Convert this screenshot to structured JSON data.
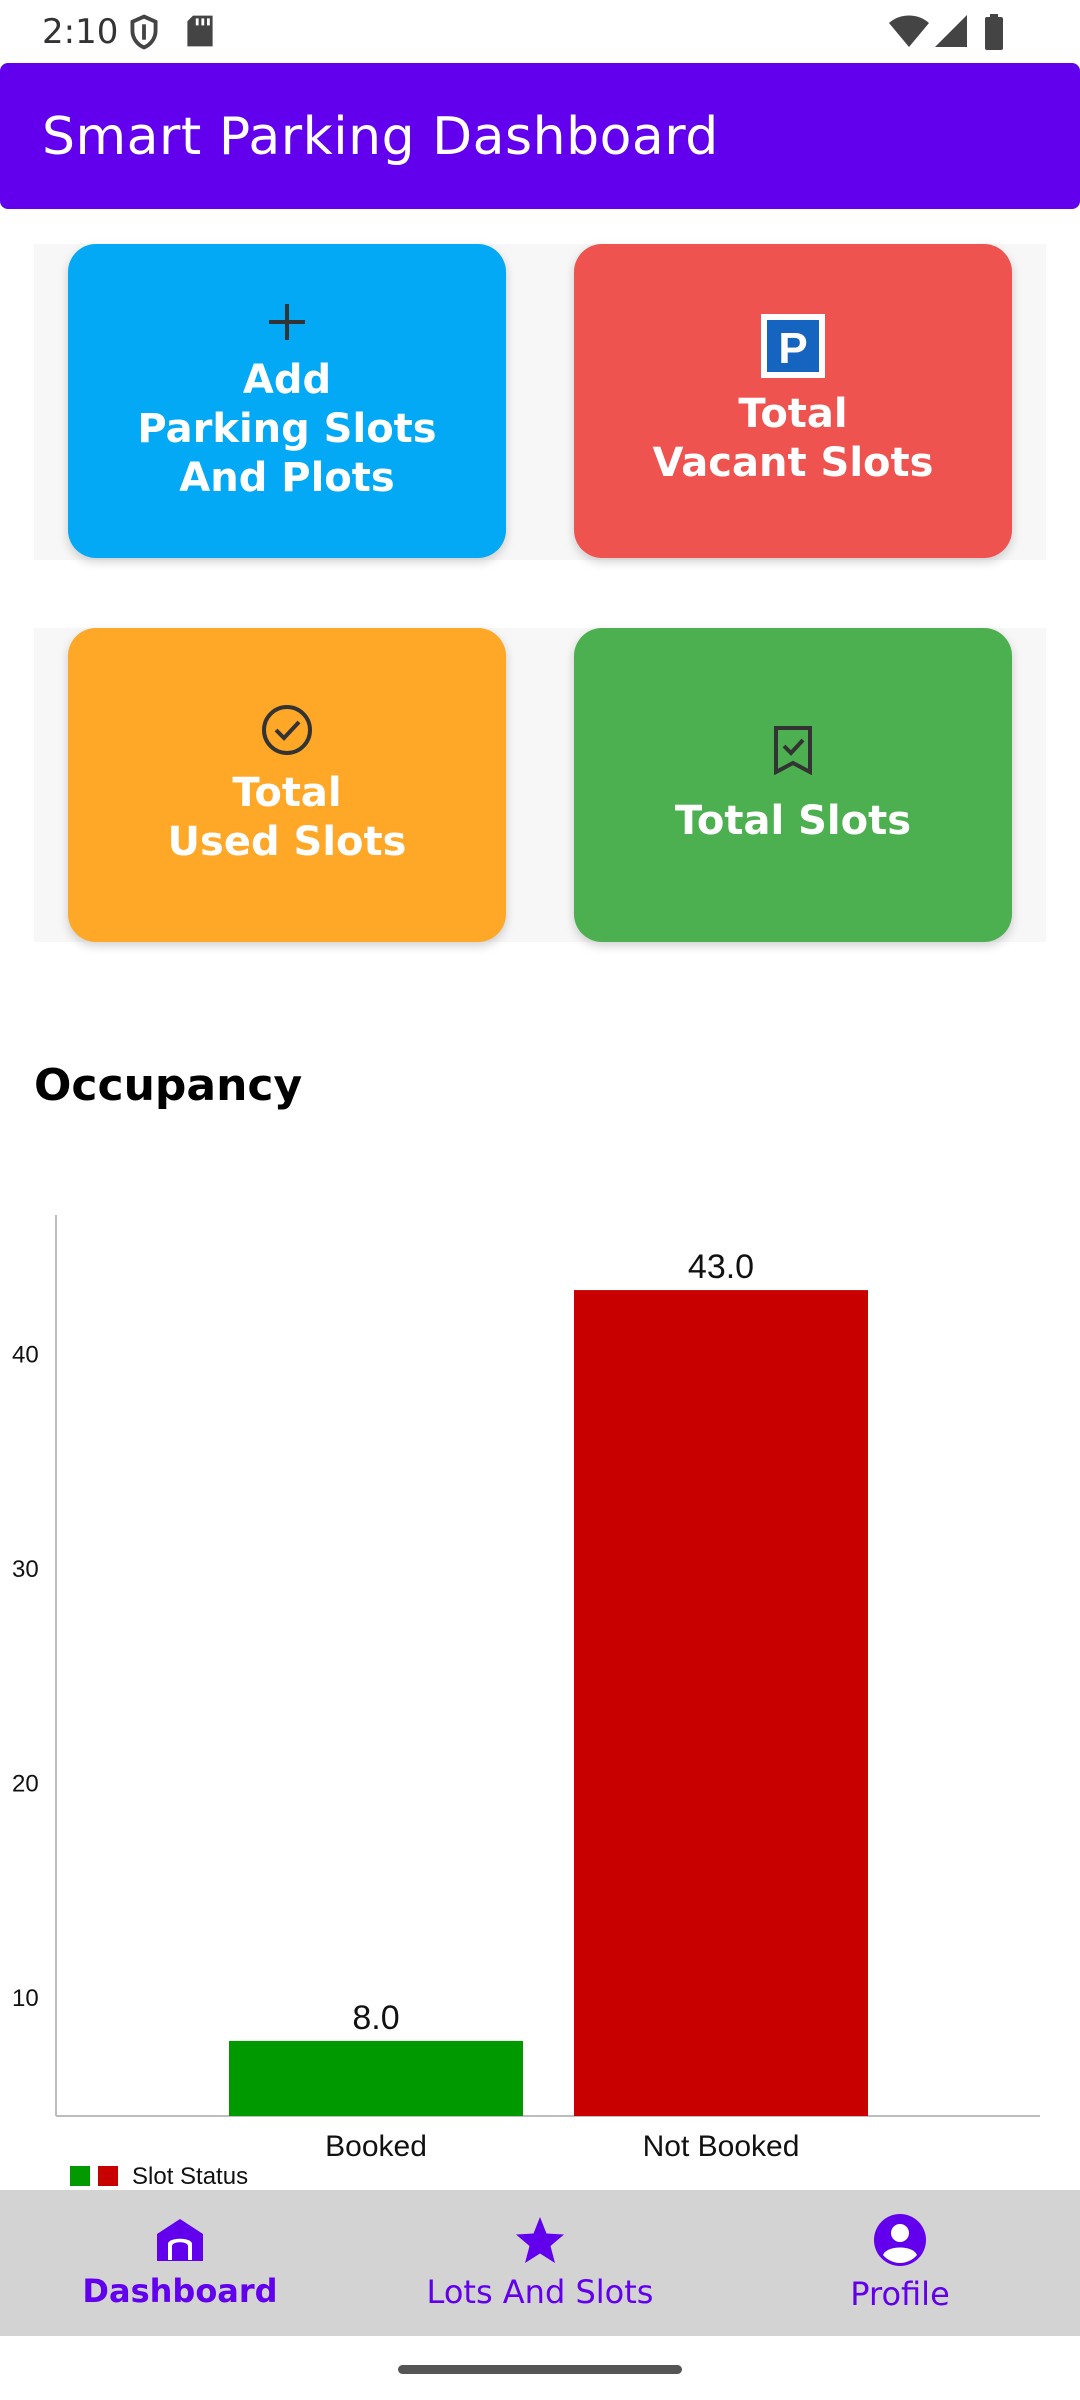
{
  "status_bar": {
    "time": "2:10",
    "icons": [
      "shield-icon",
      "sd-card-icon",
      "wifi-icon",
      "signal-icon",
      "battery-icon"
    ]
  },
  "app_bar": {
    "title": "Smart Parking Dashboard",
    "color": "#6200EE"
  },
  "cards": [
    {
      "name": "add-parking-card",
      "label": "Add\nParking Slots\nAnd Plots",
      "icon": "plus-icon",
      "color": "#03A9F4"
    },
    {
      "name": "vacant-slots-card",
      "label": "Total\nVacant Slots",
      "icon": "parking-sign-icon",
      "color": "#EF5350"
    },
    {
      "name": "used-slots-card",
      "label": "Total\nUsed Slots",
      "icon": "check-circle-icon",
      "color": "#FFA726"
    },
    {
      "name": "total-slots-card",
      "label": "Total Slots",
      "icon": "bookmark-check-icon",
      "color": "#4CAF50"
    }
  ],
  "occupancy": {
    "title": "Occupancy"
  },
  "chart_data": {
    "type": "bar",
    "categories": [
      "Booked",
      "Not Booked"
    ],
    "values": [
      8.0,
      43.0
    ],
    "value_labels": [
      "8.0",
      "43.0"
    ],
    "colors": [
      "#009900",
      "#C80000"
    ],
    "yticks": [
      10,
      20,
      30,
      40
    ],
    "ylim": [
      4.5,
      46.5
    ],
    "legend": {
      "label": "Slot Status",
      "position": "bottom-left"
    },
    "grid": false
  },
  "bottom_nav": {
    "items": [
      {
        "name": "nav-dashboard",
        "label": "Dashboard",
        "icon": "home-icon",
        "active": true
      },
      {
        "name": "nav-lots-and-slots",
        "label": "Lots And Slots",
        "icon": "star-icon",
        "active": false
      },
      {
        "name": "nav-profile",
        "label": "Profile",
        "icon": "account-circle-icon",
        "active": false
      }
    ]
  }
}
